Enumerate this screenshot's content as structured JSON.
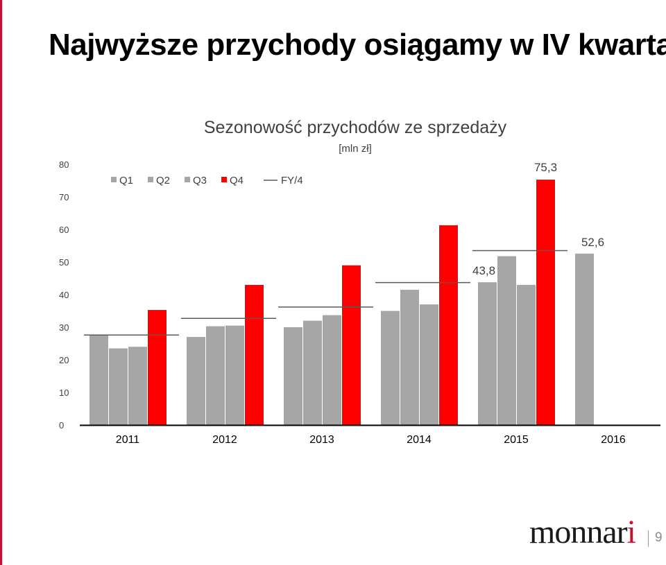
{
  "slide": {
    "title": "Najwyższe przychody osiągamy w IV kwartale",
    "page_number": "9",
    "logo_text": "monnari"
  },
  "colors": {
    "quarter_bar": "#a6a6a6",
    "q4_bar": "#ff0000",
    "fy_line": "#595959",
    "axis": "#000000",
    "brand_accent": "#c8102e"
  },
  "chart_data": {
    "type": "bar",
    "title": "Sezonowość przychodów ze sprzedaży",
    "subtitle": "[mln zł]",
    "categories": [
      "2011",
      "2012",
      "2013",
      "2014",
      "2015",
      "2016"
    ],
    "series": [
      {
        "name": "Q1",
        "values": [
          27.5,
          27.0,
          30.0,
          35.0,
          43.8,
          52.6
        ]
      },
      {
        "name": "Q2",
        "values": [
          23.5,
          30.3,
          32.0,
          41.5,
          51.8,
          null
        ]
      },
      {
        "name": "Q3",
        "values": [
          24.0,
          30.5,
          33.7,
          37.0,
          43.0,
          null
        ]
      },
      {
        "name": "Q4",
        "values": [
          35.3,
          43.0,
          49.0,
          61.3,
          75.3,
          null
        ]
      }
    ],
    "fy_quarter_average": {
      "name": "FY/4",
      "values": [
        27.6,
        32.7,
        36.2,
        43.7,
        53.5,
        null
      ]
    },
    "data_labels": [
      {
        "text": "75,3",
        "category": "2015",
        "series": "Q4"
      },
      {
        "text": "43,8",
        "category": "2015",
        "series": "Q1"
      },
      {
        "text": "52,6",
        "category": "2016",
        "series": "Q1"
      }
    ],
    "y_ticks": [
      "0",
      "10",
      "20",
      "30",
      "40",
      "50",
      "60",
      "70",
      "80"
    ],
    "ylim": [
      0,
      80
    ],
    "grid": false,
    "legend_position": "top-left"
  }
}
